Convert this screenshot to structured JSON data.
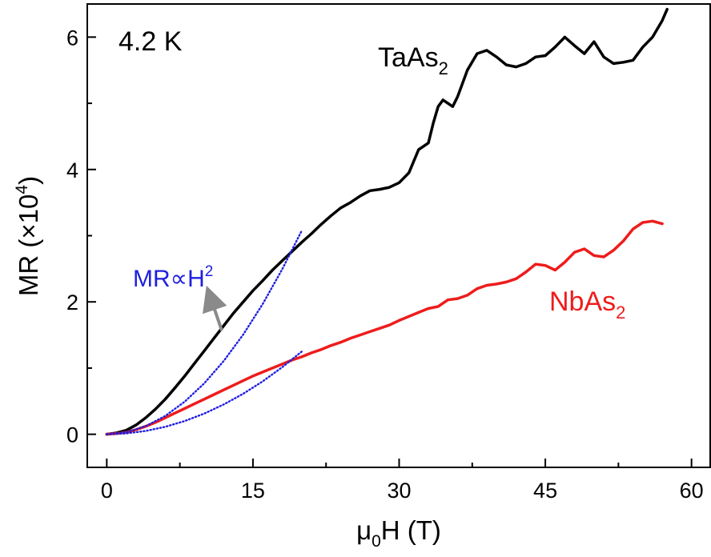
{
  "chart_data": {
    "type": "line",
    "title": "",
    "xlabel": {
      "main": "μ",
      "sub": "0",
      "rest": "H (T)"
    },
    "ylabel": {
      "main": "MR (×10",
      "sup": "4",
      "rest": ")"
    },
    "xlim": [
      -2,
      62
    ],
    "ylim": [
      -0.5,
      6.5
    ],
    "x_ticks": [
      0,
      15,
      30,
      45,
      60
    ],
    "y_ticks": [
      0,
      2,
      4,
      6
    ],
    "x_tick_labels": [
      "0",
      "15",
      "30",
      "45",
      "60"
    ],
    "y_tick_labels": [
      "0",
      "2",
      "4",
      "6"
    ],
    "series": [
      {
        "name": "TaAs2",
        "color": "#000000",
        "x": [
          0,
          1,
          2,
          3,
          4,
          5,
          6,
          7,
          8,
          9,
          10,
          11,
          12,
          13,
          14,
          15,
          16,
          17,
          18,
          19,
          20,
          21,
          22,
          23,
          24,
          25,
          26,
          27,
          28,
          29,
          30,
          31,
          32,
          33,
          33.5,
          34,
          34.5,
          35,
          35.5,
          36,
          36.5,
          37,
          38,
          39,
          40,
          41,
          42,
          43,
          44,
          45,
          46,
          47,
          48,
          49,
          50,
          51,
          52,
          53,
          54,
          55,
          56,
          57,
          57.5
        ],
        "y": [
          0,
          0.02,
          0.06,
          0.14,
          0.25,
          0.38,
          0.53,
          0.7,
          0.88,
          1.07,
          1.26,
          1.45,
          1.64,
          1.83,
          2.0,
          2.17,
          2.32,
          2.48,
          2.62,
          2.76,
          2.9,
          3.03,
          3.17,
          3.3,
          3.42,
          3.5,
          3.6,
          3.68,
          3.7,
          3.73,
          3.8,
          3.95,
          4.3,
          4.4,
          4.7,
          4.95,
          5.05,
          5.0,
          4.95,
          5.1,
          5.3,
          5.5,
          5.75,
          5.8,
          5.7,
          5.58,
          5.55,
          5.6,
          5.7,
          5.72,
          5.85,
          6.0,
          5.87,
          5.75,
          5.93,
          5.7,
          5.6,
          5.62,
          5.65,
          5.85,
          6.0,
          6.25,
          6.42
        ]
      },
      {
        "name": "NbAs2",
        "color": "#ee1c1c",
        "x": [
          0,
          1,
          2,
          3,
          4,
          5,
          6,
          7,
          8,
          9,
          10,
          11,
          12,
          13,
          14,
          15,
          16,
          17,
          18,
          19,
          20,
          21,
          22,
          23,
          24,
          25,
          26,
          27,
          28,
          29,
          30,
          31,
          32,
          33,
          34,
          35,
          36,
          37,
          38,
          39,
          40,
          41,
          42,
          43,
          44,
          45,
          46,
          47,
          48,
          49,
          50,
          51,
          52,
          53,
          54,
          55,
          56,
          57
        ],
        "y": [
          0,
          0.01,
          0.03,
          0.07,
          0.12,
          0.18,
          0.25,
          0.32,
          0.39,
          0.46,
          0.53,
          0.6,
          0.67,
          0.74,
          0.81,
          0.88,
          0.94,
          1.0,
          1.06,
          1.12,
          1.17,
          1.23,
          1.28,
          1.34,
          1.39,
          1.45,
          1.5,
          1.55,
          1.6,
          1.65,
          1.72,
          1.78,
          1.84,
          1.9,
          1.93,
          2.03,
          2.05,
          2.1,
          2.2,
          2.25,
          2.27,
          2.3,
          2.35,
          2.45,
          2.57,
          2.55,
          2.48,
          2.6,
          2.75,
          2.8,
          2.7,
          2.68,
          2.78,
          2.92,
          3.1,
          3.2,
          3.22,
          3.18
        ]
      },
      {
        "name": "",
        "role": "MR∝H² fit (TaAs2)",
        "color": "#1f1fe0",
        "style": "dotted",
        "x": [
          0,
          2,
          4,
          6,
          8,
          10,
          12,
          14,
          16,
          18,
          20
        ],
        "y": [
          0,
          0.031,
          0.123,
          0.277,
          0.492,
          0.769,
          1.107,
          1.507,
          1.968,
          2.491,
          3.075
        ]
      },
      {
        "name": "",
        "role": "MR∝H² fit (NbAs2)",
        "color": "#1f1fe0",
        "style": "dotted",
        "x": [
          0,
          2,
          4,
          6,
          8,
          10,
          12,
          14,
          16,
          18,
          20
        ],
        "y": [
          0,
          0.0125,
          0.05,
          0.1125,
          0.2,
          0.3125,
          0.45,
          0.6125,
          0.8,
          1.0125,
          1.25
        ]
      }
    ],
    "annotations": {
      "temperature": "4.2 K",
      "taas2_label": {
        "main": "TaAs",
        "sub": "2"
      },
      "nbas2_label": {
        "main": "NbAs",
        "sub": "2"
      },
      "fit_label": {
        "main": "MR",
        "sym": "∝",
        "h": "H",
        "sup": "2"
      }
    },
    "grid": false,
    "legend": "none"
  }
}
